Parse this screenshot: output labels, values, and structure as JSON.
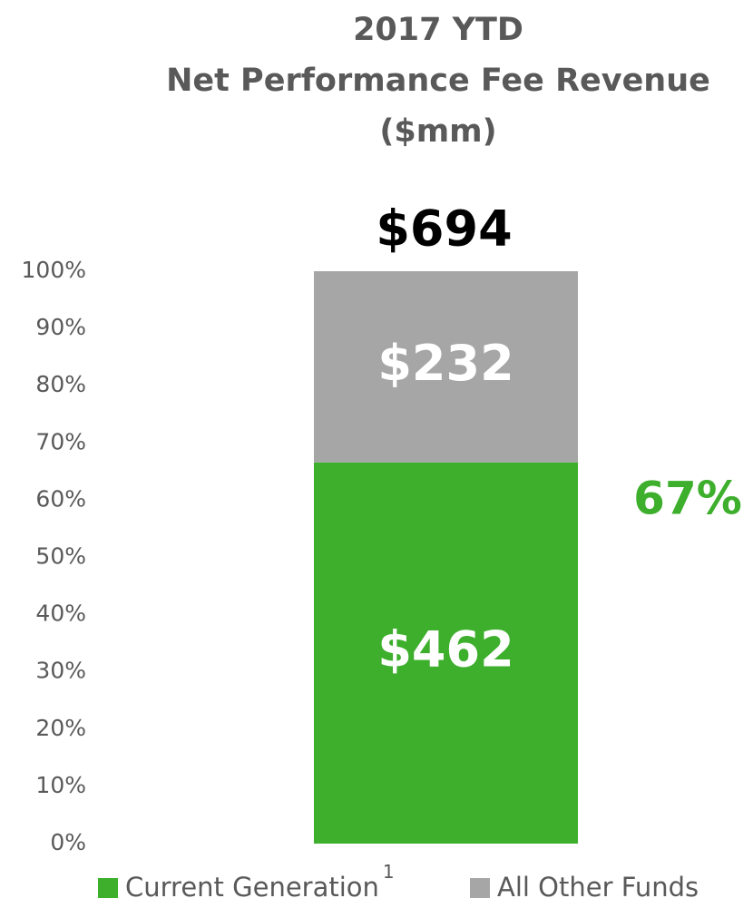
{
  "chart_data": {
    "type": "bar",
    "stacked": true,
    "title": [
      "2017 YTD",
      "Net Performance Fee Revenue",
      "($mm)"
    ],
    "total_label": "$694",
    "categories": [
      null
    ],
    "series": [
      {
        "name": "Current Generation",
        "name_superscript": "1",
        "color": "#3daf2c",
        "values": [
          66.6
        ],
        "dollar_labels": [
          "$462"
        ]
      },
      {
        "name": "All Other Funds",
        "color": "#a6a6a6",
        "values": [
          33.4
        ],
        "dollar_labels": [
          "$232"
        ]
      }
    ],
    "annotation": {
      "text": "67%",
      "color": "#3daf2c"
    },
    "ylim": [
      0,
      100
    ],
    "yticks": [
      {
        "value": 0,
        "label": "0%"
      },
      {
        "value": 10,
        "label": "10%"
      },
      {
        "value": 20,
        "label": "20%"
      },
      {
        "value": 30,
        "label": "30%"
      },
      {
        "value": 40,
        "label": "40%"
      },
      {
        "value": 50,
        "label": "50%"
      },
      {
        "value": 60,
        "label": "60%"
      },
      {
        "value": 70,
        "label": "70%"
      },
      {
        "value": 80,
        "label": "80%"
      },
      {
        "value": 90,
        "label": "90%"
      },
      {
        "value": 100,
        "label": "100%"
      }
    ],
    "grid": false
  }
}
